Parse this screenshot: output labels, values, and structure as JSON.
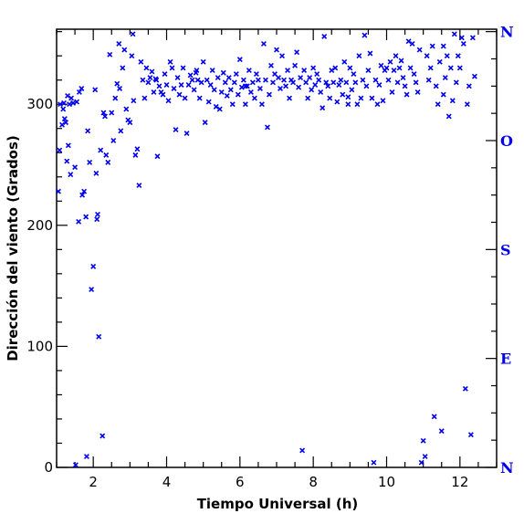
{
  "chart_data": {
    "type": "scatter",
    "xlabel": "Tiempo Universal (h)",
    "ylabel": "Dirección del viento (Grados)",
    "xlim": [
      1,
      13
    ],
    "ylim": [
      0,
      362
    ],
    "xticks": [
      2,
      4,
      6,
      8,
      10,
      12
    ],
    "yticks": [
      0,
      100,
      200,
      300
    ],
    "marker": "x",
    "marker_color": "#0000ee",
    "compass": [
      {
        "label": "N",
        "value": 0
      },
      {
        "label": "E",
        "value": 90
      },
      {
        "label": "S",
        "value": 180
      },
      {
        "label": "O",
        "value": 270
      },
      {
        "label": "N",
        "value": 360
      }
    ],
    "series": [
      {
        "points": [
          [
            1.05,
            228
          ],
          [
            1.08,
            262
          ],
          [
            1.1,
            300
          ],
          [
            1.15,
            283
          ],
          [
            1.18,
            296
          ],
          [
            1.2,
            301
          ],
          [
            1.22,
            288
          ],
          [
            1.25,
            285
          ],
          [
            1.28,
            253
          ],
          [
            1.3,
            307
          ],
          [
            1.32,
            266
          ],
          [
            1.35,
            300
          ],
          [
            1.38,
            242
          ],
          [
            1.4,
            305
          ],
          [
            1.45,
            301
          ],
          [
            1.5,
            248
          ],
          [
            1.55,
            302
          ],
          [
            1.6,
            203
          ],
          [
            1.62,
            310
          ],
          [
            1.68,
            313
          ],
          [
            1.7,
            225
          ],
          [
            1.75,
            228
          ],
          [
            1.8,
            207
          ],
          [
            1.82,
            9
          ],
          [
            1.85,
            278
          ],
          [
            1.9,
            252
          ],
          [
            1.95,
            147
          ],
          [
            2.0,
            166
          ],
          [
            2.05,
            312
          ],
          [
            2.08,
            243
          ],
          [
            2.1,
            205
          ],
          [
            2.12,
            209
          ],
          [
            2.15,
            108
          ],
          [
            2.2,
            262
          ],
          [
            2.25,
            26
          ],
          [
            2.28,
            293
          ],
          [
            2.32,
            290
          ],
          [
            2.35,
            258
          ],
          [
            2.4,
            252
          ],
          [
            2.45,
            341
          ],
          [
            2.5,
            293
          ],
          [
            2.55,
            270
          ],
          [
            2.6,
            305
          ],
          [
            2.65,
            317
          ],
          [
            2.7,
            350
          ],
          [
            2.72,
            313
          ],
          [
            2.75,
            278
          ],
          [
            2.8,
            330
          ],
          [
            2.85,
            345
          ],
          [
            2.9,
            296
          ],
          [
            2.95,
            287
          ],
          [
            3.0,
            285
          ],
          [
            3.05,
            340
          ],
          [
            3.08,
            358
          ],
          [
            3.1,
            303
          ],
          [
            3.15,
            258
          ],
          [
            3.2,
            263
          ],
          [
            3.25,
            233
          ],
          [
            3.3,
            335
          ],
          [
            3.35,
            320
          ],
          [
            3.4,
            305
          ],
          [
            3.45,
            330
          ],
          [
            3.5,
            318
          ],
          [
            3.55,
            322
          ],
          [
            3.6,
            327
          ],
          [
            3.65,
            310
          ],
          [
            3.7,
            321
          ],
          [
            3.75,
            257
          ],
          [
            3.8,
            315
          ],
          [
            3.85,
            310
          ],
          [
            3.9,
            308
          ],
          [
            3.95,
            325
          ],
          [
            4.0,
            316
          ],
          [
            4.05,
            303
          ],
          [
            4.1,
            335
          ],
          [
            4.15,
            330
          ],
          [
            4.2,
            313
          ],
          [
            4.25,
            279
          ],
          [
            4.3,
            322
          ],
          [
            4.35,
            308
          ],
          [
            4.4,
            316
          ],
          [
            4.45,
            330
          ],
          [
            4.5,
            305
          ],
          [
            4.55,
            276
          ],
          [
            4.6,
            316
          ],
          [
            4.65,
            324
          ],
          [
            4.7,
            320
          ],
          [
            4.75,
            312
          ],
          [
            4.8,
            326
          ],
          [
            4.85,
            320
          ],
          [
            4.9,
            305
          ],
          [
            4.95,
            318
          ],
          [
            5.0,
            335
          ],
          [
            5.05,
            285
          ],
          [
            5.1,
            320
          ],
          [
            5.15,
            302
          ],
          [
            5.2,
            316
          ],
          [
            5.25,
            328
          ],
          [
            5.3,
            312
          ],
          [
            5.35,
            298
          ],
          [
            5.4,
            322
          ],
          [
            5.45,
            296
          ],
          [
            5.5,
            310
          ],
          [
            5.55,
            326
          ],
          [
            5.6,
            318
          ],
          [
            5.65,
            307
          ],
          [
            5.7,
            322
          ],
          [
            5.75,
            312
          ],
          [
            5.8,
            300
          ],
          [
            5.85,
            318
          ],
          [
            5.9,
            325
          ],
          [
            5.95,
            308
          ],
          [
            6.0,
            337
          ],
          [
            6.05,
            314
          ],
          [
            6.1,
            320
          ],
          [
            6.15,
            300
          ],
          [
            6.2,
            315
          ],
          [
            6.25,
            328
          ],
          [
            6.3,
            310
          ],
          [
            6.35,
            318
          ],
          [
            6.4,
            305
          ],
          [
            6.45,
            325
          ],
          [
            6.5,
            320
          ],
          [
            6.55,
            313
          ],
          [
            6.6,
            300
          ],
          [
            6.65,
            350
          ],
          [
            6.7,
            320
          ],
          [
            6.75,
            281
          ],
          [
            6.8,
            308
          ],
          [
            6.85,
            332
          ],
          [
            6.9,
            318
          ],
          [
            6.95,
            325
          ],
          [
            7.0,
            345
          ],
          [
            7.05,
            322
          ],
          [
            7.1,
            313
          ],
          [
            7.15,
            340
          ],
          [
            7.2,
            320
          ],
          [
            7.25,
            315
          ],
          [
            7.3,
            328
          ],
          [
            7.35,
            305
          ],
          [
            7.4,
            320
          ],
          [
            7.45,
            318
          ],
          [
            7.5,
            332
          ],
          [
            7.55,
            343
          ],
          [
            7.6,
            314
          ],
          [
            7.65,
            322
          ],
          [
            7.7,
            14
          ],
          [
            7.75,
            328
          ],
          [
            7.8,
            318
          ],
          [
            7.85,
            305
          ],
          [
            7.9,
            322
          ],
          [
            7.95,
            312
          ],
          [
            8.0,
            330
          ],
          [
            8.05,
            316
          ],
          [
            8.1,
            325
          ],
          [
            8.15,
            320
          ],
          [
            8.2,
            310
          ],
          [
            8.25,
            297
          ],
          [
            8.3,
            356
          ],
          [
            8.35,
            318
          ],
          [
            8.4,
            315
          ],
          [
            8.45,
            305
          ],
          [
            8.5,
            328
          ],
          [
            8.55,
            318
          ],
          [
            8.6,
            330
          ],
          [
            8.65,
            302
          ],
          [
            8.7,
            316
          ],
          [
            8.75,
            320
          ],
          [
            8.8,
            308
          ],
          [
            8.85,
            335
          ],
          [
            8.9,
            318
          ],
          [
            8.95,
            300
          ],
          [
            9.0,
            330
          ],
          [
            9.05,
            312
          ],
          [
            9.1,
            325
          ],
          [
            9.15,
            318
          ],
          [
            9.2,
            300
          ],
          [
            9.25,
            340
          ],
          [
            9.3,
            305
          ],
          [
            9.35,
            320
          ],
          [
            9.4,
            357
          ],
          [
            9.45,
            315
          ],
          [
            9.5,
            328
          ],
          [
            9.55,
            342
          ],
          [
            9.6,
            305
          ],
          [
            9.65,
            4
          ],
          [
            9.7,
            320
          ],
          [
            9.75,
            300
          ],
          [
            9.8,
            316
          ],
          [
            9.85,
            332
          ],
          [
            9.9,
            303
          ],
          [
            9.95,
            328
          ],
          [
            10.0,
            330
          ],
          [
            10.05,
            320
          ],
          [
            10.1,
            335
          ],
          [
            10.15,
            310
          ],
          [
            10.2,
            328
          ],
          [
            10.25,
            340
          ],
          [
            10.3,
            318
          ],
          [
            10.35,
            330
          ],
          [
            10.4,
            336
          ],
          [
            10.45,
            322
          ],
          [
            10.5,
            315
          ],
          [
            10.55,
            308
          ],
          [
            10.6,
            352
          ],
          [
            10.65,
            330
          ],
          [
            10.7,
            350
          ],
          [
            10.75,
            325
          ],
          [
            10.8,
            318
          ],
          [
            10.85,
            310
          ],
          [
            10.9,
            345
          ],
          [
            10.95,
            4
          ],
          [
            11.0,
            22
          ],
          [
            11.05,
            9
          ],
          [
            11.1,
            340
          ],
          [
            11.15,
            320
          ],
          [
            11.2,
            330
          ],
          [
            11.25,
            348
          ],
          [
            11.3,
            42
          ],
          [
            11.35,
            315
          ],
          [
            11.4,
            300
          ],
          [
            11.45,
            335
          ],
          [
            11.5,
            30
          ],
          [
            11.55,
            348
          ],
          [
            11.6,
            322
          ],
          [
            11.65,
            340
          ],
          [
            11.7,
            290
          ],
          [
            11.75,
            330
          ],
          [
            11.8,
            303
          ],
          [
            11.85,
            358
          ],
          [
            11.9,
            318
          ],
          [
            11.95,
            340
          ],
          [
            12.0,
            330
          ],
          [
            12.05,
            355
          ],
          [
            12.1,
            350
          ],
          [
            12.15,
            65
          ],
          [
            12.2,
            300
          ],
          [
            12.25,
            315
          ],
          [
            12.3,
            27
          ],
          [
            12.35,
            355
          ],
          [
            12.4,
            323
          ],
          [
            1.52,
            2
          ],
          [
            11.55,
            308
          ],
          [
            8.95,
            306
          ],
          [
            6.15,
            315
          ],
          [
            4.82,
            328
          ],
          [
            3.72,
            320
          ]
        ]
      }
    ]
  }
}
